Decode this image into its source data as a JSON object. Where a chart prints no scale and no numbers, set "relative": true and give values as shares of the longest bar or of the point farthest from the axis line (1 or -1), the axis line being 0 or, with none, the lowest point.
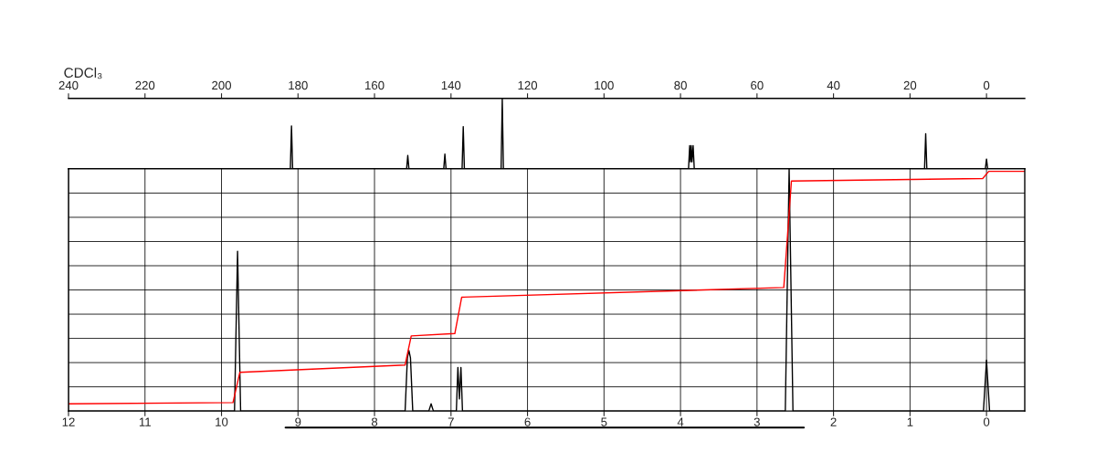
{
  "chart_data": [
    {
      "type": "line",
      "relative": true,
      "annotations": [
        "CDCl₃"
      ],
      "xlim": [
        240,
        -10
      ],
      "xticks": [
        240,
        220,
        200,
        180,
        160,
        140,
        120,
        100,
        80,
        60,
        40,
        20,
        0
      ],
      "tick_labels": "x",
      "grid": false,
      "series": [
        {
          "color": "#000000",
          "x": [
            240,
            182.0,
            181.7,
            181.4,
            151.6,
            151.3,
            151.0,
            141.9,
            141.6,
            141.3,
            137.1,
            136.8,
            136.5,
            126.9,
            126.6,
            126.3,
            77.9,
            77.6,
            77.4,
            77.2,
            77.0,
            76.7,
            76.4,
            16.2,
            15.9,
            15.6,
            0.3,
            0,
            -0.3,
            -10
          ],
          "values": [
            0,
            0,
            0.61,
            0,
            0,
            0.19,
            0,
            0,
            0.21,
            0,
            0,
            0.6,
            0,
            0,
            1,
            0,
            0,
            0.33,
            0.1,
            0.33,
            0.1,
            0.33,
            0,
            0,
            0.5,
            0,
            0,
            0.14,
            0,
            0
          ]
        }
      ]
    },
    {
      "type": "line",
      "relative": true,
      "xlim": [
        12,
        -0.5
      ],
      "xticks": [
        12,
        11,
        10,
        9,
        8,
        7,
        6,
        5,
        4,
        3,
        2,
        1,
        0
      ],
      "tick_labels": "x",
      "grid": true,
      "series": [
        {
          "color": "#000000",
          "x": [
            12,
            9.83,
            9.79,
            9.75,
            7.6,
            7.57,
            7.55,
            7.53,
            7.5,
            7.29,
            7.26,
            7.23,
            6.93,
            6.91,
            6.89,
            6.87,
            6.85,
            2.63,
            2.58,
            2.53,
            0.04,
            0,
            -0.04,
            -0.5
          ],
          "values": [
            0,
            0,
            0.66,
            0,
            0,
            0.22,
            0.25,
            0.22,
            0,
            0,
            0.03,
            0,
            0,
            0.18,
            0.05,
            0.18,
            0,
            0,
            1,
            0,
            0,
            0.21,
            0,
            0
          ]
        },
        {
          "color": "#ff0000",
          "x": [
            12,
            9.85,
            9.76,
            7.6,
            7.52,
            6.95,
            6.86,
            2.65,
            2.55,
            0.05,
            -0.03,
            -0.5
          ],
          "values": [
            0.03,
            0.035,
            0.16,
            0.19,
            0.31,
            0.32,
            0.47,
            0.51,
            0.95,
            0.96,
            0.99,
            0.99
          ]
        }
      ]
    }
  ]
}
